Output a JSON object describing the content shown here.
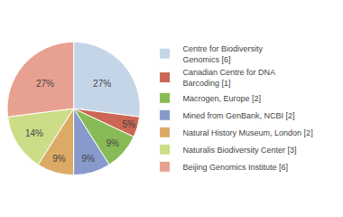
{
  "chart_data": {
    "type": "pie",
    "categories": [
      "Centre for Biodiversity\nGenomics [6]",
      "Canadian Centre for DNA\nBarcoding [1]",
      "Macrogen, Europe [2]",
      "Mined from GenBank, NCBI [2]",
      "Natural History Museum, London [2]",
      "Naturalis Biodiversity Center [3]",
      "Beijing Genomics Institute [6]"
    ],
    "values": [
      27,
      5,
      9,
      9,
      9,
      14,
      27
    ],
    "value_labels": [
      "27%",
      "5%",
      "9%",
      "9%",
      "9%",
      "14%",
      "27%"
    ],
    "colors": [
      "#c5d5e8",
      "#cc6655",
      "#88bb55",
      "#8899cc",
      "#ddaa66",
      "#ccdd88",
      "#e8a090"
    ],
    "data_labels": true,
    "legend": "right"
  }
}
